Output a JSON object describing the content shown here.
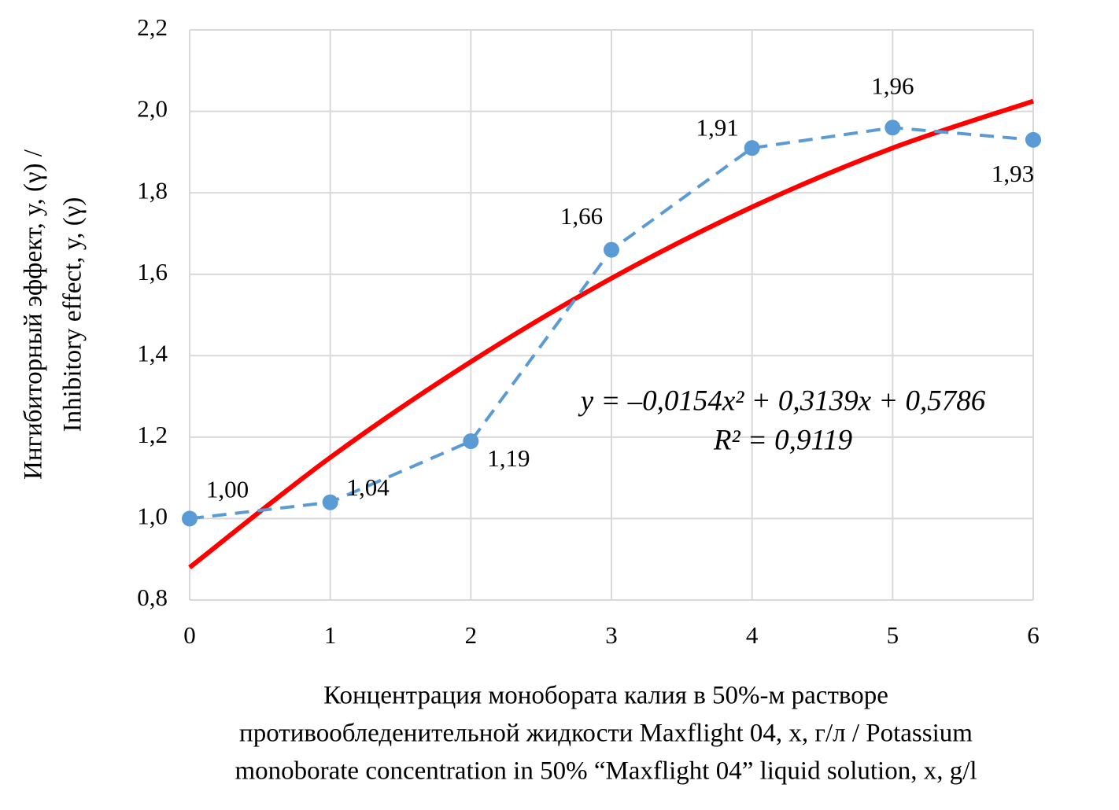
{
  "chart_data": {
    "type": "line",
    "x": [
      0,
      1,
      2,
      3,
      4,
      5,
      6
    ],
    "series": [
      {
        "color": "#5b9bd5",
        "values": [
          1.0,
          1.04,
          1.19,
          1.66,
          1.91,
          1.96,
          1.93
        ],
        "value_labels": [
          "1,00",
          "1,04",
          "1,19",
          "1,66",
          "1,91",
          "1,96",
          "1,93"
        ]
      }
    ],
    "trend": {
      "color": "#ff0000",
      "values": [
        0.88,
        1.15,
        1.385,
        1.59,
        1.765,
        1.91,
        2.025
      ]
    },
    "equation": "y = –0,0154x² + 0,3139x + 0,5786",
    "r_squared": "R² = 0,9119",
    "xlim": [
      0,
      6
    ],
    "xticks": [
      0,
      1,
      2,
      3,
      4,
      5,
      6
    ],
    "ylim": [
      0.8,
      2.2
    ],
    "yticks": [
      {
        "value": 0.8,
        "label": "0,8"
      },
      {
        "value": 1.0,
        "label": "1,0"
      },
      {
        "value": 1.2,
        "label": "1,2"
      },
      {
        "value": 1.4,
        "label": "1,4"
      },
      {
        "value": 1.6,
        "label": "1,6"
      },
      {
        "value": 1.8,
        "label": "1,8"
      },
      {
        "value": 2.0,
        "label": "2,0"
      },
      {
        "value": 2.2,
        "label": "2,2"
      }
    ],
    "grid": true,
    "ylabel": [
      "Ингибиторный эффект,  y, (γ)  /",
      "Inhibitory  effect,  y,  (γ)"
    ],
    "xlabel": [
      "Концентрация монобората калия в 50%-м растворе",
      "противообледенительной жидкости  Maxflight 04,  x,  г/л  / Potassium",
      "monoborate concentration in 50% “Maxflight 04” liquid solution, x, g/l"
    ]
  }
}
